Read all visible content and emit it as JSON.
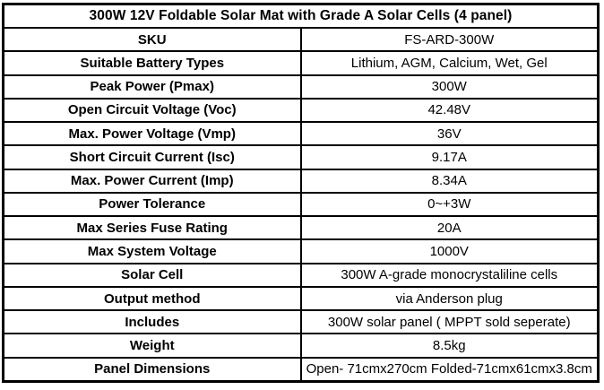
{
  "colors": {
    "border": "#000000",
    "text": "#000000",
    "background": "#ffffff"
  },
  "table": {
    "title": "300W 12V Foldable Solar Mat with Grade A Solar Cells (4 panel)",
    "rows": [
      {
        "label": "SKU",
        "value": "FS-ARD-300W"
      },
      {
        "label": "Suitable Battery Types",
        "value": "Lithium, AGM, Calcium, Wet, Gel"
      },
      {
        "label": "Peak Power (Pmax)",
        "value": "300W"
      },
      {
        "label": "Open Circuit Voltage (Voc)",
        "value": "42.48V"
      },
      {
        "label": "Max. Power Voltage (Vmp)",
        "value": "36V"
      },
      {
        "label": "Short Circuit Current (Isc)",
        "value": "9.17A"
      },
      {
        "label": "Max. Power Current (Imp)",
        "value": "8.34A"
      },
      {
        "label": "Power Tolerance",
        "value": "0~+3W"
      },
      {
        "label": "Max Series Fuse Rating",
        "value": "20A"
      },
      {
        "label": "Max System Voltage",
        "value": "1000V"
      },
      {
        "label": "Solar Cell",
        "value": "300W A-grade monocrystaliline cells"
      },
      {
        "label": "Output method",
        "value": "via Anderson plug"
      },
      {
        "label": "Includes",
        "value": "300W solar panel ( MPPT sold seperate)"
      },
      {
        "label": "Weight",
        "value": "8.5kg"
      },
      {
        "label": "Panel Dimensions",
        "value": "Open- 71cmx270cm Folded-71cmx61cmx3.8cm"
      }
    ]
  }
}
